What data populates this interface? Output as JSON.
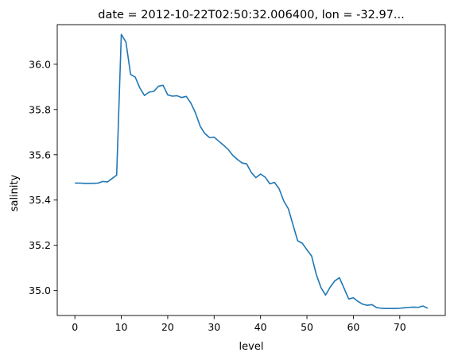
{
  "chart_data": {
    "type": "line",
    "title": "date = 2012-10-22T02:50:32.006400, lon = -32.97...",
    "xlabel": "level",
    "ylabel": "salinity",
    "xlim": [
      -3.8,
      79.8
    ],
    "ylim": [
      34.89,
      36.175
    ],
    "xticks": [
      0,
      10,
      20,
      30,
      40,
      50,
      60,
      70
    ],
    "yticks": [
      35.0,
      35.2,
      35.4,
      35.6,
      35.8,
      36.0
    ],
    "grid": false,
    "series": [
      {
        "color": "#1f77b4",
        "x": [
          0,
          1,
          2,
          3,
          4,
          5,
          6,
          7,
          8,
          9,
          10,
          11,
          12,
          13,
          14,
          15,
          16,
          17,
          18,
          19,
          20,
          21,
          22,
          23,
          24,
          25,
          26,
          27,
          28,
          29,
          30,
          31,
          32,
          33,
          34,
          35,
          36,
          37,
          38,
          39,
          40,
          41,
          42,
          43,
          44,
          45,
          46,
          47,
          48,
          49,
          50,
          51,
          52,
          53,
          54,
          55,
          56,
          57,
          58,
          59,
          60,
          61,
          62,
          63,
          64,
          65,
          66,
          67,
          68,
          69,
          70,
          71,
          72,
          73,
          74,
          75,
          76
        ],
        "y": [
          35.475,
          35.475,
          35.474,
          35.474,
          35.474,
          35.475,
          35.482,
          35.48,
          35.495,
          35.51,
          36.132,
          36.098,
          35.955,
          35.943,
          35.895,
          35.862,
          35.877,
          35.88,
          35.903,
          35.907,
          35.865,
          35.859,
          35.861,
          35.853,
          35.858,
          35.828,
          35.784,
          35.726,
          35.694,
          35.676,
          35.678,
          35.66,
          35.643,
          35.624,
          35.598,
          35.58,
          35.564,
          35.56,
          35.522,
          35.499,
          35.515,
          35.501,
          35.472,
          35.478,
          35.45,
          35.396,
          35.361,
          35.29,
          35.22,
          35.209,
          35.18,
          35.153,
          35.072,
          35.014,
          34.98,
          35.015,
          35.043,
          35.057,
          35.01,
          34.963,
          34.968,
          34.952,
          34.94,
          34.935,
          34.938,
          34.925,
          34.922,
          34.921,
          34.921,
          34.921,
          34.922,
          34.924,
          34.926,
          34.927,
          34.926,
          34.932,
          34.922
        ]
      }
    ]
  }
}
